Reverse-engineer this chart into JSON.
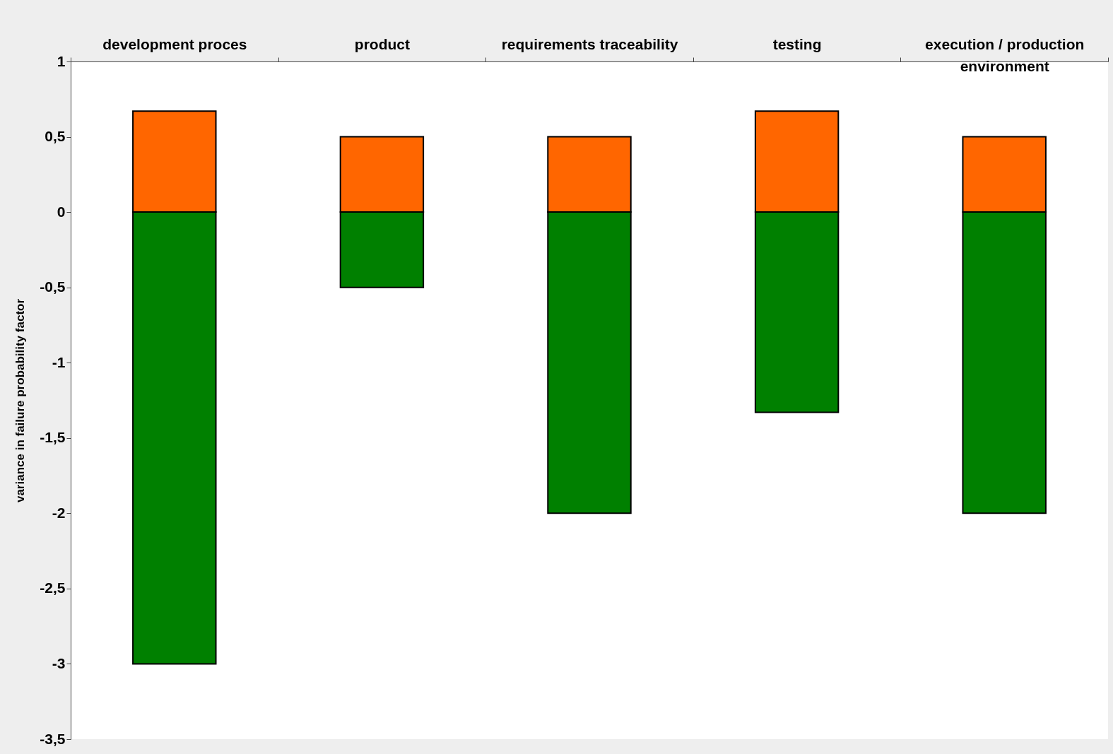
{
  "chart_data": {
    "type": "bar",
    "stacked": true,
    "ylabel": "variance in failure probability factor",
    "categories": [
      "development proces",
      "product",
      "requirements traceability",
      "testing",
      "execution / production environment"
    ],
    "series": [
      {
        "color": "#ff6600",
        "values": [
          0.67,
          0.5,
          0.5,
          0.67,
          0.5
        ]
      },
      {
        "color": "#008000",
        "values": [
          -3,
          -0.5,
          -2,
          -1.33,
          -2
        ]
      }
    ],
    "ylim": [
      -3.5,
      1
    ],
    "yticks": [
      {
        "value": -3.5,
        "label": "-3,5"
      },
      -3,
      {
        "value": -2.5,
        "label": "-2,5"
      },
      -2,
      {
        "value": -1.5,
        "label": "-1,5"
      },
      -1,
      {
        "value": -0.5,
        "label": "-0,5"
      },
      0,
      {
        "value": 0.5,
        "label": "0,5"
      },
      1
    ],
    "grid": false,
    "legend": false
  }
}
